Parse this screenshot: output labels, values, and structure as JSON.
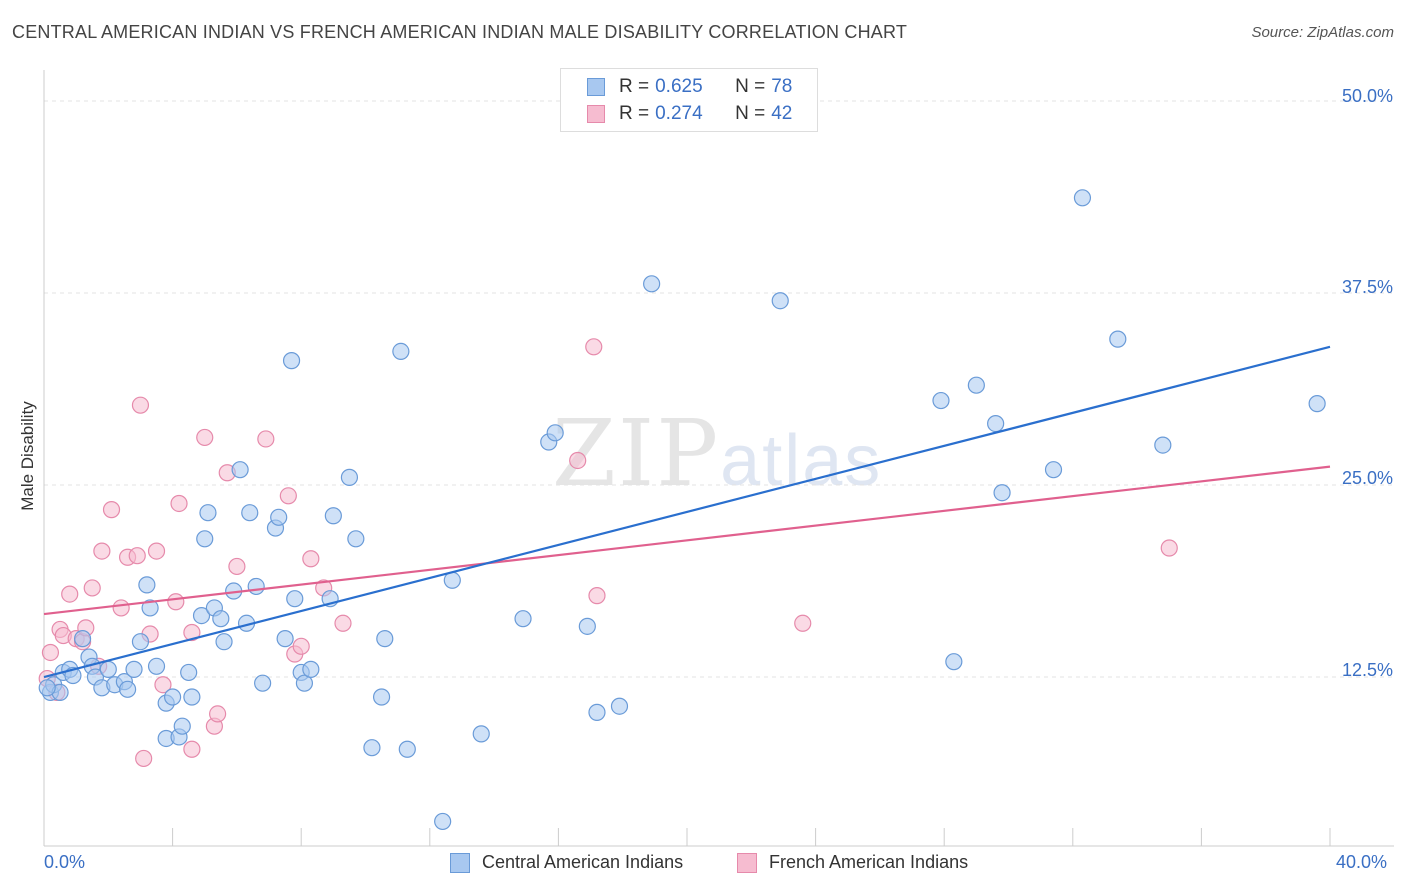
{
  "header": {
    "title": "CENTRAL AMERICAN INDIAN VS FRENCH AMERICAN INDIAN MALE DISABILITY CORRELATION CHART",
    "source": "Source: ZipAtlas.com"
  },
  "watermark": {
    "zip": "ZIP",
    "atlas": "atlas"
  },
  "legend": {
    "rows": [
      {
        "r_label": "R =",
        "r_value": "0.625",
        "n_label": "N =",
        "n_value": "78"
      },
      {
        "r_label": "R =",
        "r_value": "0.274",
        "n_label": "N =",
        "n_value": "42"
      }
    ]
  },
  "bottom_legend": {
    "series_a": "Central American Indians",
    "series_b": "French American Indians"
  },
  "axes": {
    "ylabel": "Male Disability",
    "x_min_label": "0.0%",
    "x_max_label": "40.0%",
    "y_ticks": [
      "12.5%",
      "25.0%",
      "37.5%",
      "50.0%"
    ]
  },
  "colors": {
    "blue_fill": "#a8c8f0",
    "blue_stroke": "#6a9bd8",
    "blue_line": "#2a6fce",
    "pink_fill": "#f6bcd0",
    "pink_stroke": "#e68aab",
    "pink_line": "#e0608e"
  },
  "chart_data": {
    "type": "scatter",
    "xlim": [
      0,
      40
    ],
    "ylim": [
      1.5,
      51.5
    ],
    "grid": true,
    "series": [
      {
        "name": "Central American Indians",
        "color": "#a8c8f0",
        "trend": {
          "x": [
            0,
            40
          ],
          "y": [
            12.5,
            34.0
          ]
        },
        "points": [
          [
            0.2,
            11.5
          ],
          [
            0.3,
            12.0
          ],
          [
            0.5,
            11.5
          ],
          [
            0.6,
            12.8
          ],
          [
            0.8,
            13.0
          ],
          [
            0.9,
            12.6
          ],
          [
            1.2,
            15.0
          ],
          [
            1.4,
            13.8
          ],
          [
            1.5,
            13.2
          ],
          [
            1.6,
            12.5
          ],
          [
            1.8,
            11.8
          ],
          [
            2.0,
            13.0
          ],
          [
            2.2,
            12.0
          ],
          [
            2.5,
            12.2
          ],
          [
            2.6,
            11.7
          ],
          [
            2.8,
            13.0
          ],
          [
            3.0,
            14.8
          ],
          [
            3.2,
            18.5
          ],
          [
            3.3,
            17.0
          ],
          [
            3.5,
            13.2
          ],
          [
            3.8,
            10.8
          ],
          [
            3.8,
            8.5
          ],
          [
            4.0,
            11.2
          ],
          [
            4.2,
            8.6
          ],
          [
            4.3,
            9.3
          ],
          [
            4.5,
            12.8
          ],
          [
            4.6,
            11.2
          ],
          [
            4.9,
            16.5
          ],
          [
            5.0,
            21.5
          ],
          [
            5.1,
            23.2
          ],
          [
            5.3,
            17.0
          ],
          [
            5.5,
            16.3
          ],
          [
            5.6,
            14.8
          ],
          [
            5.9,
            18.1
          ],
          [
            6.1,
            26.0
          ],
          [
            6.3,
            16.0
          ],
          [
            6.4,
            23.2
          ],
          [
            6.6,
            18.4
          ],
          [
            6.8,
            12.1
          ],
          [
            7.2,
            22.2
          ],
          [
            7.3,
            22.9
          ],
          [
            7.5,
            15.0
          ],
          [
            7.7,
            33.1
          ],
          [
            7.8,
            17.6
          ],
          [
            8.0,
            12.8
          ],
          [
            8.1,
            12.1
          ],
          [
            8.3,
            13.0
          ],
          [
            8.9,
            17.6
          ],
          [
            9.5,
            25.5
          ],
          [
            9.0,
            23.0
          ],
          [
            9.7,
            21.5
          ],
          [
            10.2,
            7.9
          ],
          [
            10.5,
            11.2
          ],
          [
            10.6,
            15.0
          ],
          [
            11.1,
            33.7
          ],
          [
            11.3,
            7.8
          ],
          [
            12.4,
            3.1
          ],
          [
            12.7,
            18.8
          ],
          [
            13.6,
            8.8
          ],
          [
            14.9,
            16.3
          ],
          [
            15.7,
            27.8
          ],
          [
            15.9,
            28.4
          ],
          [
            16.9,
            15.8
          ],
          [
            17.2,
            10.2
          ],
          [
            17.9,
            10.6
          ],
          [
            18.9,
            38.1
          ],
          [
            22.9,
            37.0
          ],
          [
            27.9,
            30.5
          ],
          [
            28.3,
            13.5
          ],
          [
            29.0,
            31.5
          ],
          [
            29.6,
            29.0
          ],
          [
            29.8,
            24.5
          ],
          [
            31.4,
            26.0
          ],
          [
            32.3,
            43.7
          ],
          [
            33.4,
            34.5
          ],
          [
            34.8,
            27.6
          ],
          [
            39.6,
            30.3
          ],
          [
            0.1,
            11.8
          ]
        ]
      },
      {
        "name": "French American Indians",
        "color": "#f6bcd0",
        "trend": {
          "x": [
            0,
            40
          ],
          "y": [
            16.6,
            26.2
          ]
        },
        "points": [
          [
            0.1,
            12.4
          ],
          [
            0.2,
            14.1
          ],
          [
            0.4,
            11.5
          ],
          [
            0.5,
            15.6
          ],
          [
            0.6,
            15.2
          ],
          [
            0.8,
            17.9
          ],
          [
            1.0,
            15.0
          ],
          [
            1.2,
            14.8
          ],
          [
            1.3,
            15.7
          ],
          [
            1.5,
            18.3
          ],
          [
            1.7,
            13.2
          ],
          [
            1.8,
            20.7
          ],
          [
            2.1,
            23.4
          ],
          [
            2.4,
            17.0
          ],
          [
            2.6,
            20.3
          ],
          [
            2.9,
            20.4
          ],
          [
            3.0,
            30.2
          ],
          [
            3.1,
            7.2
          ],
          [
            3.3,
            15.3
          ],
          [
            3.5,
            20.7
          ],
          [
            3.7,
            12.0
          ],
          [
            4.1,
            17.4
          ],
          [
            4.2,
            23.8
          ],
          [
            4.6,
            15.4
          ],
          [
            4.6,
            7.8
          ],
          [
            5.0,
            28.1
          ],
          [
            5.3,
            9.3
          ],
          [
            5.4,
            10.1
          ],
          [
            5.7,
            25.8
          ],
          [
            6.0,
            19.7
          ],
          [
            6.9,
            28.0
          ],
          [
            7.6,
            24.3
          ],
          [
            7.8,
            14.0
          ],
          [
            8.0,
            14.5
          ],
          [
            8.3,
            20.2
          ],
          [
            8.7,
            18.3
          ],
          [
            9.3,
            16.0
          ],
          [
            16.6,
            26.6
          ],
          [
            17.1,
            34.0
          ],
          [
            17.2,
            17.8
          ],
          [
            23.6,
            16.0
          ],
          [
            35.0,
            20.9
          ]
        ]
      }
    ]
  }
}
